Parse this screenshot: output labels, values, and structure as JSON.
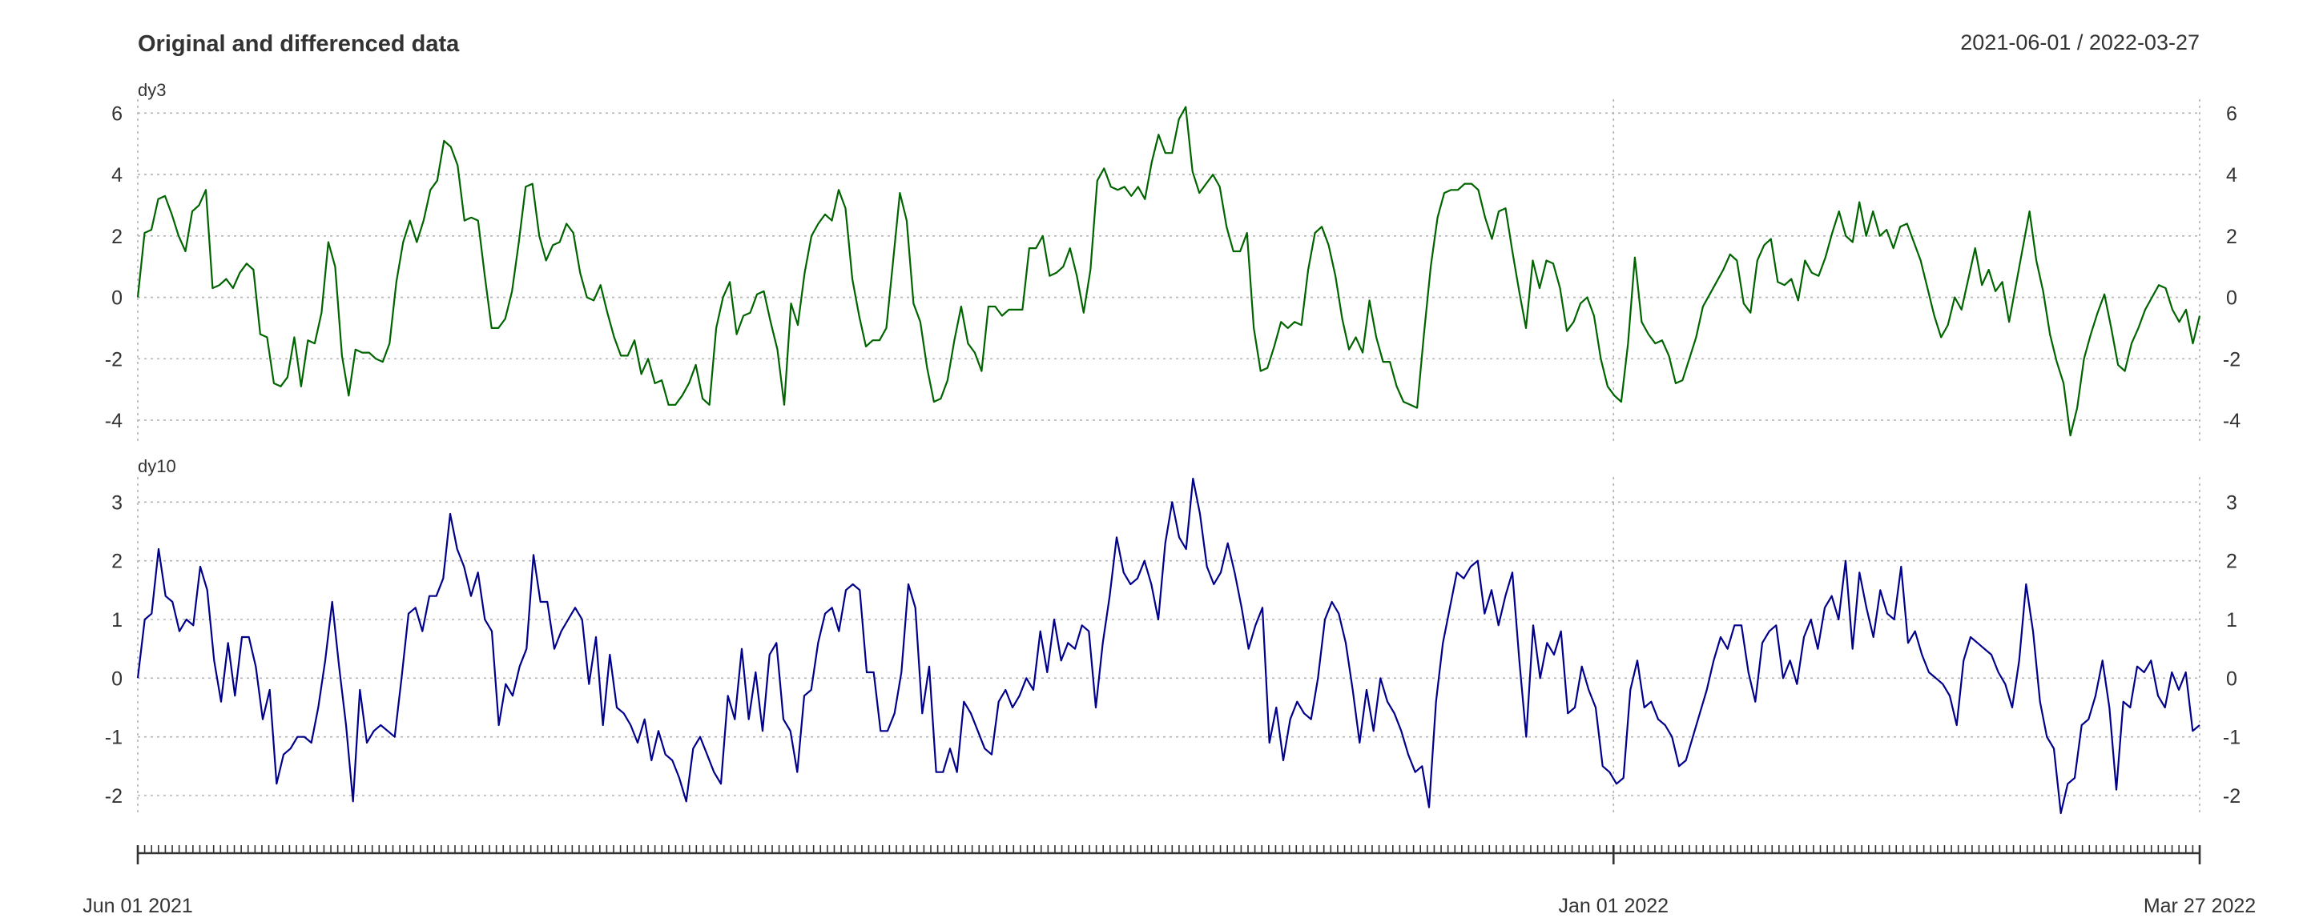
{
  "chart_data": {
    "type": "line",
    "title": "Original and differenced data",
    "date_range": "2021-06-01 / 2022-03-27",
    "x_start": "2021-06-01",
    "x_end": "2022-03-27",
    "x_tick_labels": [
      "Jun 01 2021",
      "Jan 01 2022",
      "Mar 27 2022"
    ],
    "x_tick_dates": [
      "2021-06-01",
      "2022-01-01",
      "2022-03-27"
    ],
    "grid": true,
    "panels": [
      {
        "name": "dy3",
        "color": "#006400",
        "ylim": [
          -4.6,
          6.4
        ],
        "yticks": [
          -4,
          -2,
          0,
          2,
          4,
          6
        ],
        "values": [
          0,
          2.1,
          2.2,
          3.2,
          3.3,
          2.7,
          2.0,
          1.5,
          2.8,
          3.0,
          3.5,
          0.3,
          0.4,
          0.6,
          0.3,
          0.8,
          1.1,
          0.9,
          -1.2,
          -1.3,
          -2.8,
          -2.9,
          -2.6,
          -1.3,
          -2.9,
          -1.4,
          -1.5,
          -0.5,
          1.8,
          1.0,
          -1.9,
          -3.2,
          -1.7,
          -1.8,
          -1.8,
          -2.0,
          -2.1,
          -1.5,
          0.5,
          1.8,
          2.5,
          1.8,
          2.5,
          3.5,
          3.8,
          5.1,
          4.9,
          4.3,
          2.5,
          2.6,
          2.5,
          0.7,
          -1.0,
          -1.0,
          -0.7,
          0.2,
          1.8,
          3.6,
          3.7,
          2.0,
          1.2,
          1.7,
          1.8,
          2.4,
          2.1,
          0.8,
          0,
          -0.1,
          0.4,
          -0.5,
          -1.3,
          -1.9,
          -1.9,
          -1.4,
          -2.5,
          -2.0,
          -2.8,
          -2.7,
          -3.5,
          -3.5,
          -3.2,
          -2.8,
          -2.2,
          -3.3,
          -3.5,
          -1.0,
          0,
          0.5,
          -1.2,
          -0.6,
          -0.5,
          0.1,
          0.2,
          -0.8,
          -1.7,
          -3.5,
          -0.2,
          -0.9,
          0.8,
          2.0,
          2.4,
          2.7,
          2.5,
          3.5,
          2.9,
          0.6,
          -0.6,
          -1.6,
          -1.4,
          -1.4,
          -1.0,
          1.2,
          3.4,
          2.5,
          -0.2,
          -0.8,
          -2.3,
          -3.4,
          -3.3,
          -2.7,
          -1.4,
          -0.3,
          -1.5,
          -1.8,
          -2.4,
          -0.3,
          -0.3,
          -0.6,
          -0.4,
          -0.4,
          -0.4,
          1.6,
          1.6,
          2.0,
          0.7,
          0.8,
          1.0,
          1.6,
          0.7,
          -0.5,
          0.9,
          3.8,
          4.2,
          3.6,
          3.5,
          3.6,
          3.3,
          3.6,
          3.2,
          4.4,
          5.3,
          4.7,
          4.7,
          5.8,
          6.2,
          4.1,
          3.4,
          3.7,
          4.0,
          3.6,
          2.3,
          1.5,
          1.5,
          2.1,
          -1.0,
          -2.4,
          -2.3,
          -1.6,
          -0.8,
          -1.0,
          -0.8,
          -0.9,
          0.9,
          2.1,
          2.3,
          1.7,
          0.7,
          -0.7,
          -1.7,
          -1.3,
          -1.8,
          -0.1,
          -1.3,
          -2.1,
          -2.1,
          -2.9,
          -3.4,
          -3.5,
          -3.6,
          -1.2,
          1.0,
          2.6,
          3.4,
          3.5,
          3.5,
          3.7,
          3.7,
          3.5,
          2.6,
          1.9,
          2.8,
          2.9,
          1.5,
          0.2,
          -1.0,
          1.2,
          0.3,
          1.2,
          1.1,
          0.3,
          -1.1,
          -0.8,
          -0.2,
          0,
          -0.6,
          -2.0,
          -2.9,
          -3.2,
          -3.4,
          -1.5,
          1.3,
          -0.8,
          -1.2,
          -1.5,
          -1.4,
          -1.9,
          -2.8,
          -2.7,
          -2.0,
          -1.3,
          -0.3,
          0.1,
          0.5,
          0.9,
          1.4,
          1.2,
          -0.2,
          -0.5,
          1.2,
          1.7,
          1.9,
          0.5,
          0.4,
          0.6,
          -0.1,
          1.2,
          0.8,
          0.7,
          1.3,
          2.1,
          2.8,
          2.0,
          1.8,
          3.1,
          2.0,
          2.8,
          2.0,
          2.2,
          1.6,
          2.3,
          2.4,
          1.8,
          1.2,
          0.3,
          -0.6,
          -1.3,
          -0.9,
          0,
          -0.4,
          0.6,
          1.6,
          0.4,
          0.9,
          0.2,
          0.5,
          -0.8,
          0.4,
          1.6,
          2.8,
          1.2,
          0.2,
          -1.2,
          -2.1,
          -2.8,
          -4.5,
          -3.6,
          -2.0,
          -1.2,
          -0.5,
          0.1,
          -1.0,
          -2.2,
          -2.4,
          -1.5,
          -1.0,
          -0.4,
          0,
          0.4,
          0.3,
          -0.4,
          -0.8,
          -0.4,
          -1.5,
          -0.6
        ]
      },
      {
        "name": "dy10",
        "color": "#00008b",
        "ylim": [
          -2.3,
          3.4
        ],
        "yticks": [
          -2,
          -1,
          0,
          1,
          2,
          3
        ],
        "values": [
          0,
          1.0,
          1.1,
          2.2,
          1.4,
          1.3,
          0.8,
          1.0,
          0.9,
          1.9,
          1.5,
          0.3,
          -0.4,
          0.6,
          -0.3,
          0.7,
          0.7,
          0.2,
          -0.7,
          -0.2,
          -1.8,
          -1.3,
          -1.2,
          -1.0,
          -1.0,
          -1.1,
          -0.5,
          0.3,
          1.3,
          0.2,
          -0.8,
          -2.1,
          -0.2,
          -1.1,
          -0.9,
          -0.8,
          -0.9,
          -1.0,
          0,
          1.1,
          1.2,
          0.8,
          1.4,
          1.4,
          1.7,
          2.8,
          2.2,
          1.9,
          1.4,
          1.8,
          1.0,
          0.8,
          -0.8,
          -0.1,
          -0.3,
          0.2,
          0.5,
          2.1,
          1.3,
          1.3,
          0.5,
          0.8,
          1.0,
          1.2,
          1.0,
          -0.1,
          0.7,
          -0.8,
          0.4,
          -0.5,
          -0.6,
          -0.8,
          -1.1,
          -0.7,
          -1.4,
          -0.9,
          -1.3,
          -1.4,
          -1.7,
          -2.1,
          -1.2,
          -1.0,
          -1.3,
          -1.6,
          -1.8,
          -0.3,
          -0.7,
          0.5,
          -0.7,
          0.1,
          -0.9,
          0.4,
          0.6,
          -0.7,
          -0.9,
          -1.6,
          -0.3,
          -0.2,
          0.6,
          1.1,
          1.2,
          0.8,
          1.5,
          1.6,
          1.5,
          0.1,
          0.1,
          -0.9,
          -0.9,
          -0.6,
          0.1,
          1.6,
          1.2,
          -0.6,
          0.2,
          -1.6,
          -1.6,
          -1.2,
          -1.6,
          -0.4,
          -0.6,
          -0.9,
          -1.2,
          -1.3,
          -0.4,
          -0.2,
          -0.5,
          -0.3,
          0,
          -0.2,
          0.8,
          0.1,
          1.0,
          0.3,
          0.6,
          0.5,
          0.9,
          0.8,
          -0.5,
          0.6,
          1.4,
          2.4,
          1.8,
          1.6,
          1.7,
          2.0,
          1.6,
          1.0,
          2.3,
          3.0,
          2.4,
          2.2,
          3.4,
          2.8,
          1.9,
          1.6,
          1.8,
          2.3,
          1.8,
          1.2,
          0.5,
          0.9,
          1.2,
          -1.1,
          -0.5,
          -1.4,
          -0.7,
          -0.4,
          -0.6,
          -0.7,
          0,
          1.0,
          1.3,
          1.1,
          0.6,
          -0.2,
          -1.1,
          -0.2,
          -0.9,
          0,
          -0.4,
          -0.6,
          -0.9,
          -1.3,
          -1.6,
          -1.5,
          -2.2,
          -0.4,
          0.6,
          1.2,
          1.8,
          1.7,
          1.9,
          2.0,
          1.1,
          1.5,
          0.9,
          1.4,
          1.8,
          0.3,
          -1.0,
          0.9,
          0,
          0.6,
          0.4,
          0.8,
          -0.6,
          -0.5,
          0.2,
          -0.2,
          -0.5,
          -1.5,
          -1.6,
          -1.8,
          -1.7,
          -0.2,
          0.3,
          -0.5,
          -0.4,
          -0.7,
          -0.8,
          -1.0,
          -1.5,
          -1.4,
          -1.0,
          -0.6,
          -0.2,
          0.3,
          0.7,
          0.5,
          0.9,
          0.9,
          0.1,
          -0.4,
          0.6,
          0.8,
          0.9,
          0,
          0.3,
          -0.1,
          0.7,
          1.0,
          0.5,
          1.2,
          1.4,
          1.0,
          2.0,
          0.5,
          1.8,
          1.2,
          0.7,
          1.5,
          1.1,
          1.0,
          1.9,
          0.6,
          0.8,
          0.4,
          0.1,
          0,
          -0.1,
          -0.3,
          -0.8,
          0.3,
          0.7,
          0.6,
          0.5,
          0.4,
          0.1,
          -0.1,
          -0.5,
          0.3,
          1.6,
          0.8,
          -0.4,
          -1.0,
          -1.2,
          -2.3,
          -1.8,
          -1.7,
          -0.8,
          -0.7,
          -0.3,
          0.3,
          -0.5,
          -1.9,
          -0.4,
          -0.5,
          0.2,
          0.1,
          0.3,
          -0.3,
          -0.5,
          0.1,
          -0.2,
          0.1,
          -0.9,
          -0.8
        ]
      }
    ]
  }
}
